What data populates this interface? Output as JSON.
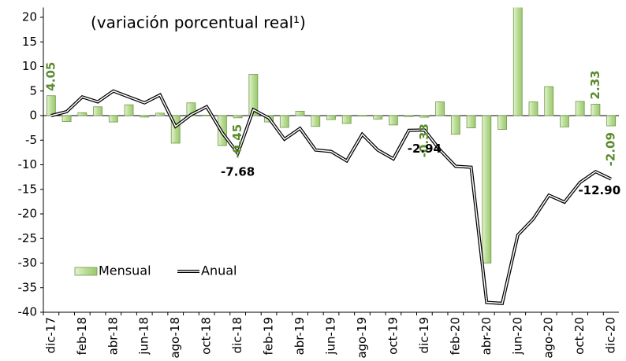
{
  "chart_data": {
    "type": "bar-line",
    "title": "(variación porcentual real¹)",
    "categories": [
      "dic-17",
      null,
      "feb-18",
      null,
      "abr-18",
      null,
      "jun-18",
      null,
      "ago-18",
      null,
      "oct-18",
      null,
      "dic-18",
      null,
      "feb-19",
      null,
      "abr-19",
      null,
      "jun-19",
      null,
      "ago-19",
      null,
      "oct-19",
      null,
      "dic-19",
      null,
      "feb-20",
      null,
      "abr-20",
      null,
      "jun-20",
      null,
      "ago-20",
      null,
      "oct-20",
      null,
      "dic-20"
    ],
    "series": [
      {
        "name": "Mensual",
        "type": "bar",
        "color": "#b9dc94",
        "values": [
          4.05,
          -1.2,
          0.6,
          1.8,
          -1.3,
          2.2,
          -0.3,
          0.5,
          -5.6,
          2.6,
          0.1,
          -6.1,
          -0.45,
          8.4,
          -1.3,
          -2.4,
          0.9,
          -2.2,
          -0.8,
          -1.6,
          -0.1,
          -0.7,
          -1.9,
          -0.2,
          -0.33,
          2.8,
          -3.8,
          -2.5,
          -30.0,
          -2.8,
          23,
          2.8,
          5.9,
          -2.3,
          2.9,
          2.33,
          -2.09
        ],
        "value_labels": [
          "4.05",
          null,
          null,
          null,
          null,
          null,
          null,
          null,
          null,
          null,
          null,
          null,
          "-0.45",
          null,
          null,
          null,
          null,
          null,
          null,
          null,
          null,
          null,
          null,
          null,
          "-0.33",
          null,
          null,
          null,
          null,
          null,
          null,
          null,
          null,
          null,
          null,
          "2.33",
          "-2.09"
        ]
      },
      {
        "name": "Anual",
        "type": "line",
        "color": "#000000",
        "values": [
          0.0,
          0.8,
          3.8,
          2.8,
          5.0,
          3.8,
          2.6,
          4.2,
          -2.2,
          0.2,
          1.8,
          -3.5,
          -7.68,
          1.2,
          -0.5,
          -4.8,
          -2.6,
          -7.0,
          -7.3,
          -9.2,
          -3.8,
          -7.0,
          -8.8,
          -3.0,
          -2.94,
          -7.0,
          -10.3,
          -10.5,
          -38.0,
          -38.2,
          -24.3,
          -21.0,
          -16.2,
          -17.6,
          -13.6,
          -11.4,
          -12.9
        ],
        "value_labels": [
          null,
          null,
          null,
          null,
          null,
          null,
          null,
          null,
          null,
          null,
          null,
          null,
          "-7.68",
          null,
          null,
          null,
          null,
          null,
          null,
          null,
          null,
          null,
          null,
          null,
          "-2.94",
          null,
          null,
          null,
          null,
          null,
          null,
          null,
          null,
          null,
          null,
          null,
          "-12.90"
        ]
      }
    ],
    "ylim": [
      -40,
      22
    ],
    "yticks": [
      -40,
      -35,
      -30,
      -25,
      -20,
      -15,
      -10,
      -5,
      0,
      5,
      10,
      15,
      20
    ],
    "legend": "lower left"
  }
}
